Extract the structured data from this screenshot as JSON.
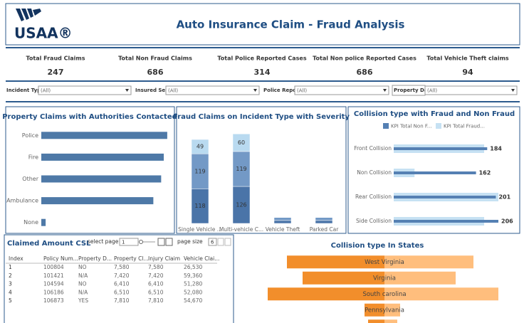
{
  "header": {
    "logo": "USAA®",
    "title": "Auto Insurance Claim - Fraud Analysis"
  },
  "kpis": [
    {
      "label": "Total Fraud Claims",
      "value": 247
    },
    {
      "label": "Total Non Fraud Claims",
      "value": 686
    },
    {
      "label": "Total Police Reported Cases",
      "value": 314
    },
    {
      "label": "Total  Non police Reported Cases",
      "value": 686
    },
    {
      "label": "Total Vehicle Theft claims",
      "value": 94
    }
  ],
  "filters": [
    {
      "label": "Incident Type",
      "value": "(All)"
    },
    {
      "label": "Insured Sex",
      "value": "(All)"
    },
    {
      "label": "Police Repo...",
      "value": "(All)"
    },
    {
      "label": "Property Da...",
      "value": "(All)"
    }
  ],
  "chart_data": [
    {
      "type": "hbar",
      "title": "Property Claims with Authorities Contacted",
      "categories": [
        "Police",
        "Fire",
        "Other",
        "Ambulance",
        "None"
      ],
      "values": [
        290,
        282,
        276,
        258,
        10
      ],
      "color": "#4e79a7",
      "xlim": [
        0,
        300
      ]
    },
    {
      "type": "stacked_bar",
      "title": "Fraud Claims on Incident Type with Severity",
      "categories": [
        "Single Vehicle ...",
        "Multi-vehicle C...",
        "Vehicle Theft",
        "Parked Car"
      ],
      "series": [
        {
          "color": "#4a74a8",
          "values": [
            118,
            126,
            10,
            10
          ]
        },
        {
          "color": "#7399c6",
          "values": [
            119,
            119,
            10,
            10
          ]
        },
        {
          "color": "#b9daf0",
          "values": [
            49,
            60,
            0,
            0
          ]
        }
      ],
      "ylim": [
        0,
        320
      ]
    },
    {
      "type": "grouped_hbar",
      "title": "Collision type with Fraud and Non Fraud",
      "categories": [
        "Front Collision",
        "Non Collision",
        "Rear Collision",
        "Side Collision"
      ],
      "series": [
        {
          "name": "KPI Total Non F...",
          "color": "#5580b3",
          "values": [
            184,
            162,
            201,
            206
          ]
        },
        {
          "name": "KPI Total Fraud...",
          "color": "#c6e1f3",
          "values": [
            178,
            41,
            206,
            178
          ]
        }
      ],
      "xlim": [
        0,
        220
      ]
    },
    {
      "type": "diverging_bar",
      "title": "Collision type In States",
      "categories": [
        "West Virginia",
        "Virginia",
        "South carolina",
        "Pennsylvania",
        null
      ],
      "series": [
        {
          "color": "#f28e2b",
          "values": [
            137,
            115,
            164,
            28,
            23
          ]
        },
        {
          "color": "#ffbe7d",
          "values": [
            125,
            100,
            160,
            22,
            18
          ]
        }
      ],
      "xlim": [
        0,
        170
      ]
    }
  ],
  "table": {
    "title": "Claimed Amount CSL",
    "select_page_label": "select page",
    "page": "1",
    "page_size_label": "page size",
    "page_size": "6",
    "columns": [
      "Index",
      "Policy Num...",
      "Property D...",
      "Property Cl...",
      "Injury Claim",
      "Vehicle Clai..."
    ],
    "rows": [
      [
        "1",
        "100804",
        "NO",
        "7,580",
        "7,580",
        "26,530"
      ],
      [
        "2",
        "101421",
        "N/A",
        "7,420",
        "7,420",
        "59,360"
      ],
      [
        "3",
        "104594",
        "NO",
        "6,410",
        "6,410",
        "51,280"
      ],
      [
        "4",
        "106186",
        "N/A",
        "6,510",
        "6,510",
        "52,080"
      ],
      [
        "5",
        "106873",
        "YES",
        "7,810",
        "7,810",
        "54,670"
      ]
    ]
  }
}
